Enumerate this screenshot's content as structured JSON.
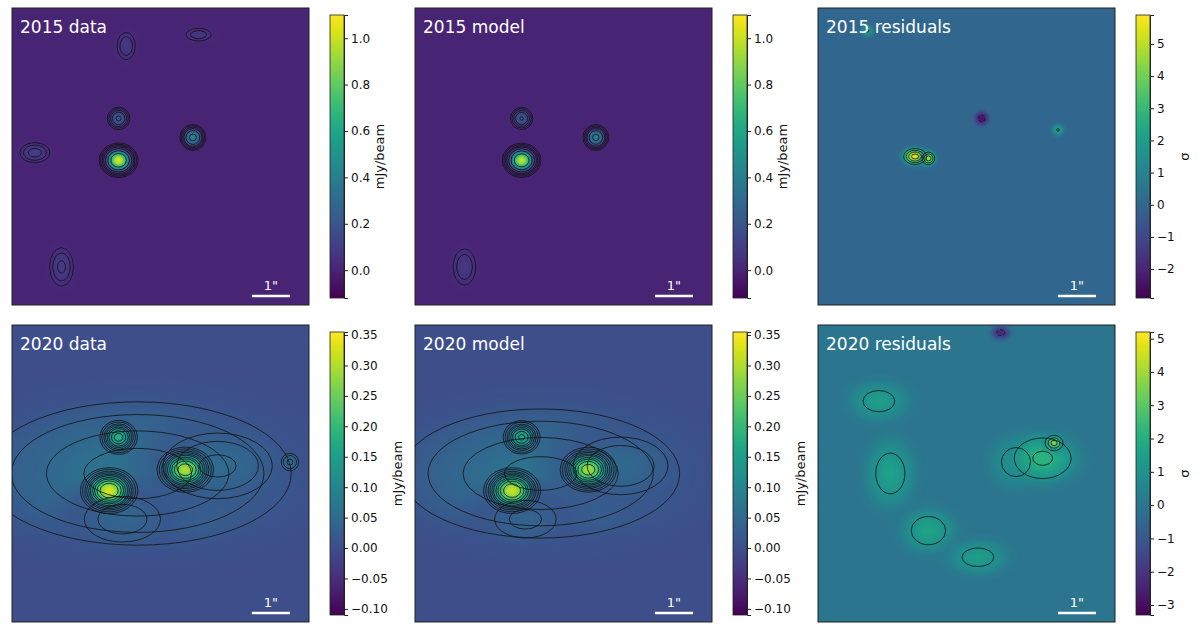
{
  "chart_data": [
    {
      "type": "heatmap",
      "title": "2015 data",
      "xlim": [
        -3.9,
        3.9
      ],
      "ylim": [
        -3.9,
        3.9
      ],
      "tick_labels": false,
      "background": 0,
      "sources": [
        {
          "x": -2.6,
          "y": -2.9,
          "peak": 0.09,
          "fwhm": [
            0.5,
            0.8
          ]
        },
        {
          "x": -3.3,
          "y": 0.1,
          "peak": 0.1,
          "fwhm": [
            0.6,
            0.4
          ]
        },
        {
          "x": -0.9,
          "y": 2.9,
          "peak": 0.08,
          "fwhm": [
            0.4,
            0.6
          ]
        },
        {
          "x": 1.0,
          "y": 3.2,
          "peak": 0.07,
          "fwhm": [
            0.6,
            0.3
          ]
        },
        {
          "x": -1.1,
          "y": 1.0,
          "peak": 0.22,
          "fwhm": [
            0.35,
            0.35
          ]
        },
        {
          "x": 0.85,
          "y": 0.5,
          "peak": 0.42,
          "fwhm": [
            0.35,
            0.35
          ]
        },
        {
          "x": -1.1,
          "y": -0.1,
          "peak": 1.05,
          "fwhm": [
            0.45,
            0.4
          ]
        }
      ],
      "contour_levels": [
        0.03,
        0.05,
        0.08,
        0.12,
        0.2,
        0.35,
        0.6
      ],
      "colorbar": {
        "range": [
          -0.12,
          1.1
        ],
        "label": "mJy/beam",
        "ticks": [
          {
            "value": 0,
            "label": "0.0"
          },
          0.2,
          0.4,
          0.6,
          0.8,
          {
            "value": 1,
            "label": "1.0"
          }
        ]
      },
      "scale_bar": {
        "length": 1,
        "label": "1\""
      }
    },
    {
      "type": "heatmap",
      "title": "2015 model",
      "xlim": [
        -3.9,
        3.9
      ],
      "ylim": [
        -3.9,
        3.9
      ],
      "tick_labels": false,
      "background": 0,
      "sources": [
        {
          "x": -2.6,
          "y": -2.9,
          "peak": 0.08,
          "fwhm": [
            0.5,
            0.8
          ]
        },
        {
          "x": -1.1,
          "y": 1.0,
          "peak": 0.21,
          "fwhm": [
            0.35,
            0.35
          ]
        },
        {
          "x": 0.85,
          "y": 0.5,
          "peak": 0.41,
          "fwhm": [
            0.35,
            0.35
          ]
        },
        {
          "x": -1.1,
          "y": -0.1,
          "peak": 1.0,
          "fwhm": [
            0.45,
            0.4
          ]
        }
      ],
      "contour_levels": [
        0.03,
        0.05,
        0.08,
        0.12,
        0.2,
        0.35,
        0.6
      ],
      "colorbar": {
        "range": [
          -0.12,
          1.1
        ],
        "label": "mJy/beam",
        "ticks": [
          {
            "value": 0,
            "label": "0.0"
          },
          0.2,
          0.4,
          0.6,
          0.8,
          {
            "value": 1,
            "label": "1.0"
          }
        ]
      },
      "scale_bar": {
        "length": 1,
        "label": "1\""
      }
    },
    {
      "type": "heatmap",
      "title": "2015 residuals",
      "xlim": [
        -3.9,
        3.9
      ],
      "ylim": [
        -3.9,
        3.9
      ],
      "tick_labels": false,
      "background": 0,
      "sources": [
        {
          "x": 0.4,
          "y": 1.0,
          "peak": -2.5,
          "fwhm": [
            0.3,
            0.3
          ]
        },
        {
          "x": 2.4,
          "y": 0.7,
          "peak": 2.1,
          "fwhm": [
            0.25,
            0.25
          ]
        },
        {
          "x": -2.6,
          "y": 3.3,
          "peak": 2.1,
          "fwhm": [
            0.25,
            0.25
          ]
        },
        {
          "x": -1.35,
          "y": 0.0,
          "peak": 5.5,
          "fwhm": [
            0.5,
            0.35
          ]
        },
        {
          "x": -1.0,
          "y": -0.05,
          "peak": 4.6,
          "fwhm": [
            0.3,
            0.3
          ]
        }
      ],
      "contour_levels": [
        -2,
        2,
        3,
        4,
        5
      ],
      "colorbar": {
        "range": [
          -2.9,
          5.9
        ],
        "label": "σ",
        "ticks": [
          {
            "value": -2,
            "label": "−2"
          },
          {
            "value": -1,
            "label": "−1"
          },
          0,
          1,
          2,
          3,
          4,
          5
        ]
      },
      "scale_bar": {
        "length": 1,
        "label": "1\""
      }
    },
    {
      "type": "heatmap",
      "title": "2020 data",
      "xlim": [
        -3.9,
        3.9
      ],
      "ylim": [
        -3.9,
        3.9
      ],
      "tick_labels": false,
      "background": 0,
      "sources": [
        {
          "x": -0.6,
          "y": 0.0,
          "peak": 0.07,
          "fwhm": [
            6.0,
            2.8
          ]
        },
        {
          "x": 1.5,
          "y": 0.2,
          "peak": 0.05,
          "fwhm": [
            2.5,
            1.5
          ]
        },
        {
          "x": -1.0,
          "y": -1.2,
          "peak": 0.04,
          "fwhm": [
            2.0,
            1.2
          ]
        },
        {
          "x": 3.4,
          "y": 0.3,
          "peak": 0.05,
          "fwhm": [
            0.4,
            0.4
          ]
        },
        {
          "x": -1.1,
          "y": 0.95,
          "peak": 0.18,
          "fwhm": [
            0.55,
            0.5
          ]
        },
        {
          "x": 0.65,
          "y": 0.1,
          "peak": 0.3,
          "fwhm": [
            0.75,
            0.6
          ]
        },
        {
          "x": -1.35,
          "y": -0.45,
          "peak": 0.33,
          "fwhm": [
            0.75,
            0.6
          ]
        }
      ],
      "contour_levels": [
        0.02,
        0.03,
        0.045,
        0.06,
        0.08,
        0.1,
        0.13,
        0.16,
        0.2,
        0.25
      ],
      "colorbar": {
        "range": [
          -0.11,
          0.355
        ],
        "label": "mJy/beam",
        "ticks": [
          {
            "value": -0.1,
            "label": "−0.10"
          },
          {
            "value": -0.05,
            "label": "−0.05"
          },
          {
            "value": 0,
            "label": "0.00"
          },
          0.05,
          {
            "value": 0.1,
            "label": "0.10"
          },
          0.15,
          {
            "value": 0.2,
            "label": "0.20"
          },
          0.25,
          {
            "value": 0.3,
            "label": "0.30"
          },
          0.35
        ]
      },
      "scale_bar": {
        "length": 1,
        "label": "1\""
      }
    },
    {
      "type": "heatmap",
      "title": "2020 model",
      "xlim": [
        -3.9,
        3.9
      ],
      "ylim": [
        -3.9,
        3.9
      ],
      "tick_labels": false,
      "background": 0,
      "sources": [
        {
          "x": -0.6,
          "y": 0.0,
          "peak": 0.065,
          "fwhm": [
            5.6,
            2.6
          ]
        },
        {
          "x": 1.5,
          "y": 0.2,
          "peak": 0.045,
          "fwhm": [
            2.3,
            1.4
          ]
        },
        {
          "x": -1.0,
          "y": -1.2,
          "peak": 0.035,
          "fwhm": [
            1.8,
            1.1
          ]
        },
        {
          "x": -1.1,
          "y": 0.95,
          "peak": 0.17,
          "fwhm": [
            0.55,
            0.5
          ]
        },
        {
          "x": 0.65,
          "y": 0.1,
          "peak": 0.29,
          "fwhm": [
            0.75,
            0.6
          ]
        },
        {
          "x": -1.35,
          "y": -0.45,
          "peak": 0.32,
          "fwhm": [
            0.75,
            0.6
          ]
        }
      ],
      "contour_levels": [
        0.02,
        0.03,
        0.045,
        0.06,
        0.08,
        0.1,
        0.13,
        0.16,
        0.2,
        0.25
      ],
      "colorbar": {
        "range": [
          -0.11,
          0.355
        ],
        "label": "mJy/beam",
        "ticks": [
          {
            "value": -0.1,
            "label": "−0.10"
          },
          {
            "value": -0.05,
            "label": "−0.05"
          },
          {
            "value": 0,
            "label": "0.00"
          },
          0.05,
          {
            "value": 0.1,
            "label": "0.10"
          },
          0.15,
          {
            "value": 0.2,
            "label": "0.20"
          },
          0.25,
          {
            "value": 0.3,
            "label": "0.30"
          },
          0.35
        ]
      },
      "scale_bar": {
        "length": 1,
        "label": "1\""
      }
    },
    {
      "type": "heatmap",
      "title": "2020 residuals",
      "xlim": [
        -3.9,
        3.9
      ],
      "ylim": [
        -3.9,
        3.9
      ],
      "tick_labels": false,
      "background": 0,
      "sources": [
        {
          "x": 0.9,
          "y": 3.7,
          "peak": -2.4,
          "fwhm": [
            0.4,
            0.3
          ]
        },
        {
          "x": -2.3,
          "y": 1.9,
          "peak": 1.4,
          "fwhm": [
            1.2,
            0.8
          ]
        },
        {
          "x": -2.0,
          "y": 0.0,
          "peak": 1.5,
          "fwhm": [
            1.0,
            1.4
          ]
        },
        {
          "x": -1.0,
          "y": -1.5,
          "peak": 1.6,
          "fwhm": [
            1.1,
            0.9
          ]
        },
        {
          "x": 0.3,
          "y": -2.2,
          "peak": 1.4,
          "fwhm": [
            1.2,
            0.7
          ]
        },
        {
          "x": 1.3,
          "y": 0.3,
          "peak": 1.5,
          "fwhm": [
            1.0,
            1.0
          ]
        },
        {
          "x": 2.0,
          "y": 0.4,
          "peak": 2.2,
          "fwhm": [
            1.4,
            1.0
          ]
        },
        {
          "x": 2.3,
          "y": 0.8,
          "peak": 3.5,
          "fwhm": [
            0.35,
            0.3
          ]
        }
      ],
      "contour_levels": [
        -2,
        1,
        2,
        3
      ],
      "colorbar": {
        "range": [
          -3.3,
          5.2
        ],
        "label": "σ",
        "ticks": [
          {
            "value": -3,
            "label": "−3"
          },
          {
            "value": -2,
            "label": "−2"
          },
          {
            "value": -1,
            "label": "−1"
          },
          0,
          1,
          2,
          3,
          4,
          5
        ]
      },
      "scale_bar": {
        "length": 1,
        "label": "1\""
      }
    }
  ]
}
